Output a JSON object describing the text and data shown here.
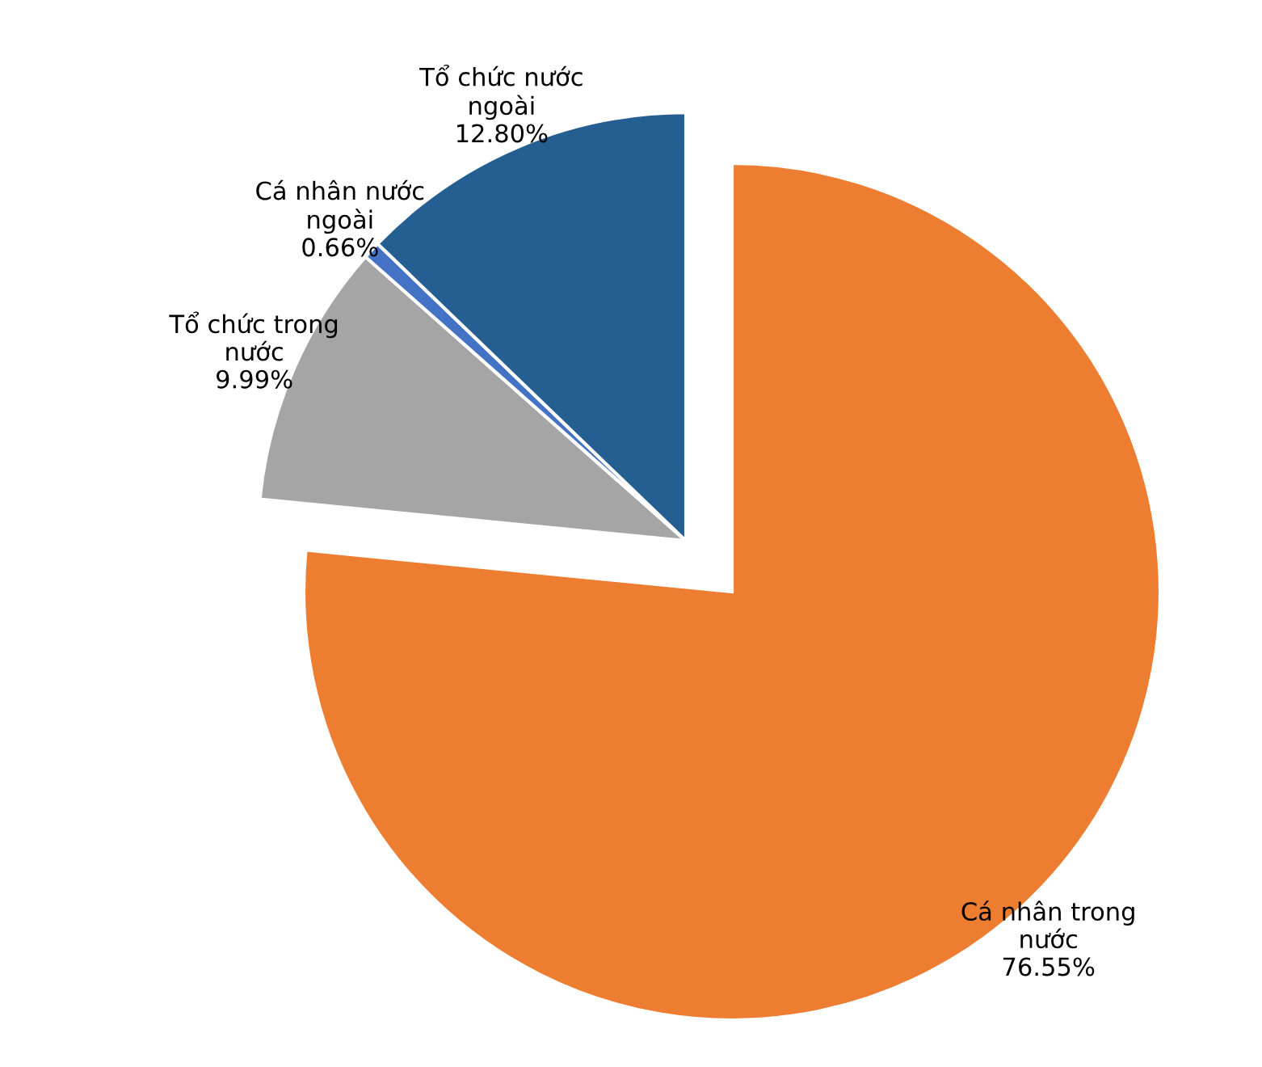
{
  "chart_data": {
    "type": "pie",
    "categories": [
      "Cá nhân trong nước",
      "Tổ chức trong nước",
      "Cá nhân nước ngoài",
      "Tổ chức nước ngoài"
    ],
    "values": [
      76.55,
      9.99,
      0.66,
      12.8
    ],
    "value_labels": [
      "76.55%",
      "9.99%",
      "0.66%",
      "12.80%"
    ],
    "colors": [
      "#ed7d31",
      "#a5a5a5",
      "#4472c4",
      "#255e91"
    ],
    "legend": false
  }
}
